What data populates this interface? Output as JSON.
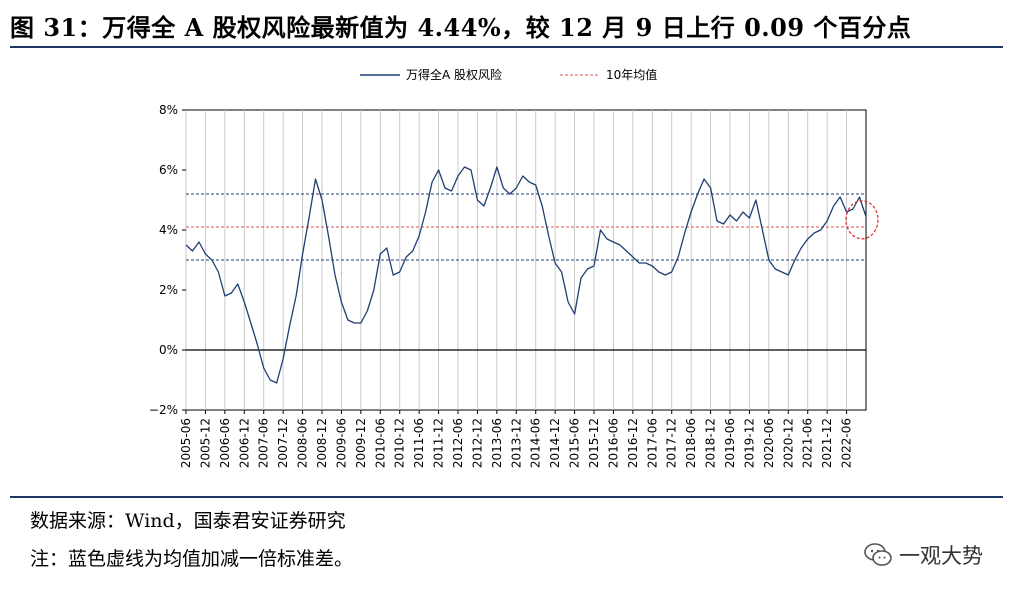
{
  "header": {
    "title": "图 31：万得全 A 股权风险最新值为 4.44%，较 12 月 9 日上行 0.09 个百分点"
  },
  "footer": {
    "source": "数据来源：Wind，国泰君安证券研究",
    "note": "注：蓝色虚线为均值加减一倍标准差。",
    "watermark": "一观大势"
  },
  "chart_data": {
    "type": "line",
    "title": "",
    "xlabel": "",
    "ylabel": "",
    "ylim": [
      -2,
      8
    ],
    "yticks": [
      "8%",
      "6%",
      "4%",
      "2%",
      "0%",
      "−2%"
    ],
    "ytick_values": [
      8,
      6,
      4,
      2,
      0,
      -2
    ],
    "xticks": [
      "2005-06",
      "2005-12",
      "2006-06",
      "2006-12",
      "2007-06",
      "2007-12",
      "2008-06",
      "2008-12",
      "2009-06",
      "2009-12",
      "2010-06",
      "2010-12",
      "2011-06",
      "2011-12",
      "2012-06",
      "2012-12",
      "2013-06",
      "2013-12",
      "2014-06",
      "2014-12",
      "2015-06",
      "2015-12",
      "2016-06",
      "2016-12",
      "2017-06",
      "2017-12",
      "2018-06",
      "2018-12",
      "2019-06",
      "2019-12",
      "2020-06",
      "2020-12",
      "2021-06",
      "2021-12",
      "2022-06"
    ],
    "grid": "vertical",
    "legend_position": "top",
    "colors": {
      "series": "#1f3f73",
      "mean": "#d9534f",
      "band": "#1f3f73",
      "annotation": "#e03030"
    },
    "series": [
      {
        "name": "万得全A 股权风险",
        "style": "solid",
        "points": [
          [
            "2005-06",
            3.5
          ],
          [
            "2005-08",
            3.3
          ],
          [
            "2005-10",
            3.6
          ],
          [
            "2005-12",
            3.2
          ],
          [
            "2006-02",
            3.0
          ],
          [
            "2006-04",
            2.6
          ],
          [
            "2006-06",
            1.8
          ],
          [
            "2006-08",
            1.9
          ],
          [
            "2006-10",
            2.2
          ],
          [
            "2006-12",
            1.6
          ],
          [
            "2007-02",
            0.9
          ],
          [
            "2007-04",
            0.2
          ],
          [
            "2007-06",
            -0.6
          ],
          [
            "2007-08",
            -1.0
          ],
          [
            "2007-10",
            -1.1
          ],
          [
            "2007-12",
            -0.3
          ],
          [
            "2008-02",
            0.8
          ],
          [
            "2008-04",
            1.8
          ],
          [
            "2008-06",
            3.2
          ],
          [
            "2008-08",
            4.4
          ],
          [
            "2008-10",
            5.7
          ],
          [
            "2008-12",
            5.0
          ],
          [
            "2009-02",
            3.8
          ],
          [
            "2009-04",
            2.5
          ],
          [
            "2009-06",
            1.6
          ],
          [
            "2009-08",
            1.0
          ],
          [
            "2009-10",
            0.9
          ],
          [
            "2009-12",
            0.9
          ],
          [
            "2010-02",
            1.3
          ],
          [
            "2010-04",
            2.0
          ],
          [
            "2010-06",
            3.2
          ],
          [
            "2010-08",
            3.4
          ],
          [
            "2010-10",
            2.5
          ],
          [
            "2010-12",
            2.6
          ],
          [
            "2011-02",
            3.1
          ],
          [
            "2011-04",
            3.3
          ],
          [
            "2011-06",
            3.8
          ],
          [
            "2011-08",
            4.6
          ],
          [
            "2011-10",
            5.6
          ],
          [
            "2011-12",
            6.0
          ],
          [
            "2012-02",
            5.4
          ],
          [
            "2012-04",
            5.3
          ],
          [
            "2012-06",
            5.8
          ],
          [
            "2012-08",
            6.1
          ],
          [
            "2012-10",
            6.0
          ],
          [
            "2012-12",
            5.0
          ],
          [
            "2013-02",
            4.8
          ],
          [
            "2013-04",
            5.4
          ],
          [
            "2013-06",
            6.1
          ],
          [
            "2013-08",
            5.4
          ],
          [
            "2013-10",
            5.2
          ],
          [
            "2013-12",
            5.4
          ],
          [
            "2014-02",
            5.8
          ],
          [
            "2014-04",
            5.6
          ],
          [
            "2014-06",
            5.5
          ],
          [
            "2014-08",
            4.8
          ],
          [
            "2014-10",
            3.8
          ],
          [
            "2014-12",
            2.9
          ],
          [
            "2015-02",
            2.6
          ],
          [
            "2015-04",
            1.6
          ],
          [
            "2015-06",
            1.2
          ],
          [
            "2015-08",
            2.4
          ],
          [
            "2015-10",
            2.7
          ],
          [
            "2015-12",
            2.8
          ],
          [
            "2016-02",
            4.0
          ],
          [
            "2016-04",
            3.7
          ],
          [
            "2016-06",
            3.6
          ],
          [
            "2016-08",
            3.5
          ],
          [
            "2016-10",
            3.3
          ],
          [
            "2016-12",
            3.1
          ],
          [
            "2017-02",
            2.9
          ],
          [
            "2017-04",
            2.9
          ],
          [
            "2017-06",
            2.8
          ],
          [
            "2017-08",
            2.6
          ],
          [
            "2017-10",
            2.5
          ],
          [
            "2017-12",
            2.6
          ],
          [
            "2018-02",
            3.1
          ],
          [
            "2018-04",
            3.9
          ],
          [
            "2018-06",
            4.6
          ],
          [
            "2018-08",
            5.2
          ],
          [
            "2018-10",
            5.7
          ],
          [
            "2018-12",
            5.4
          ],
          [
            "2019-02",
            4.3
          ],
          [
            "2019-04",
            4.2
          ],
          [
            "2019-06",
            4.5
          ],
          [
            "2019-08",
            4.3
          ],
          [
            "2019-10",
            4.6
          ],
          [
            "2019-12",
            4.4
          ],
          [
            "2020-02",
            5.0
          ],
          [
            "2020-04",
            4.0
          ],
          [
            "2020-06",
            3.0
          ],
          [
            "2020-08",
            2.7
          ],
          [
            "2020-10",
            2.6
          ],
          [
            "2020-12",
            2.5
          ],
          [
            "2021-02",
            3.0
          ],
          [
            "2021-04",
            3.4
          ],
          [
            "2021-06",
            3.7
          ],
          [
            "2021-08",
            3.9
          ],
          [
            "2021-10",
            4.0
          ],
          [
            "2021-12",
            4.3
          ],
          [
            "2022-02",
            4.8
          ],
          [
            "2022-04",
            5.1
          ],
          [
            "2022-06",
            4.6
          ],
          [
            "2022-08",
            4.7
          ],
          [
            "2022-10",
            5.1
          ],
          [
            "2022-12",
            4.44
          ]
        ]
      },
      {
        "name": "10年均值",
        "style": "dashed",
        "value": 4.1
      },
      {
        "name": "",
        "style": "dashed",
        "value": 5.2
      },
      {
        "name": "",
        "style": "dashed",
        "value": 3.0
      }
    ],
    "annotation": {
      "shape": "dashed-ellipse",
      "x": "2022-12",
      "y": 4.44
    }
  }
}
